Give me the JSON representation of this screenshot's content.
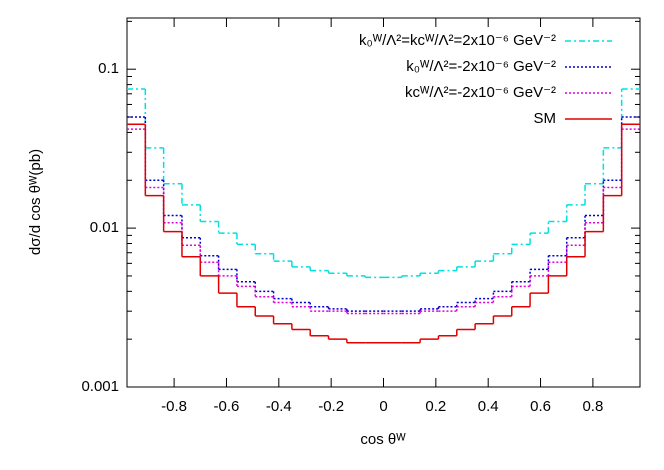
{
  "chart_data": {
    "type": "histogram-step",
    "x_label": "cos θᵂ",
    "y_label": "dσ/d cos θᵂ(pb)",
    "xlim": [
      -0.98,
      0.98
    ],
    "ylim": [
      0.001,
      0.21
    ],
    "log_y": true,
    "xticks": [
      -0.8,
      -0.6,
      -0.4,
      -0.2,
      0,
      0.2,
      0.4,
      0.6,
      0.8
    ],
    "yticks": [
      0.001,
      0.01,
      0.1
    ],
    "legend": "top-right",
    "bins": [
      -0.98,
      -0.91,
      -0.84,
      -0.77,
      -0.7,
      -0.63,
      -0.56,
      -0.49,
      -0.42,
      -0.35,
      -0.28,
      -0.21,
      -0.14,
      -0.07,
      0,
      0.07,
      0.14,
      0.21,
      0.28,
      0.35,
      0.42,
      0.49,
      0.56,
      0.63,
      0.7,
      0.77,
      0.84,
      0.91,
      0.98
    ],
    "series": [
      {
        "name": "k₀ᵂ/Λ²=kcᵂ/Λ²=2x10⁻⁶ GeV⁻²",
        "color": "#00e0e0",
        "dash": "dashdot",
        "values": [
          0.075,
          0.032,
          0.019,
          0.014,
          0.011,
          0.0093,
          0.0079,
          0.0069,
          0.0062,
          0.0057,
          0.0054,
          0.0052,
          0.005,
          0.0049,
          0.0049,
          0.005,
          0.0052,
          0.0054,
          0.0057,
          0.0062,
          0.0069,
          0.0079,
          0.0093,
          0.011,
          0.014,
          0.019,
          0.032,
          0.075
        ]
      },
      {
        "name": "k₀ᵂ/Λ²=-2x10⁻⁶ GeV⁻²",
        "color": "#0000cc",
        "dash": "dot",
        "values": [
          0.05,
          0.02,
          0.012,
          0.0087,
          0.0067,
          0.0055,
          0.0046,
          0.004,
          0.0036,
          0.0034,
          0.0032,
          0.0031,
          0.003,
          0.003,
          0.003,
          0.003,
          0.0031,
          0.0032,
          0.0034,
          0.0036,
          0.004,
          0.0046,
          0.0055,
          0.0067,
          0.0087,
          0.012,
          0.02,
          0.05
        ]
      },
      {
        "name": "kcᵂ/Λ²=-2x10⁻⁶ GeV⁻²",
        "color": "#e000e0",
        "dash": "dot",
        "values": [
          0.042,
          0.018,
          0.0108,
          0.0078,
          0.0061,
          0.005,
          0.0043,
          0.0037,
          0.0034,
          0.0032,
          0.003,
          0.003,
          0.0029,
          0.0029,
          0.0029,
          0.0029,
          0.003,
          0.003,
          0.0032,
          0.0034,
          0.0037,
          0.0043,
          0.005,
          0.0061,
          0.0078,
          0.0108,
          0.018,
          0.042
        ]
      },
      {
        "name": "SM",
        "color": "#e00000",
        "dash": "solid",
        "values": [
          0.045,
          0.016,
          0.0095,
          0.0066,
          0.005,
          0.0039,
          0.0032,
          0.0028,
          0.0025,
          0.0023,
          0.0021,
          0.002,
          0.0019,
          0.0019,
          0.0019,
          0.0019,
          0.002,
          0.0021,
          0.0023,
          0.0025,
          0.0028,
          0.0032,
          0.0039,
          0.005,
          0.0066,
          0.0095,
          0.016,
          0.045
        ]
      }
    ]
  }
}
